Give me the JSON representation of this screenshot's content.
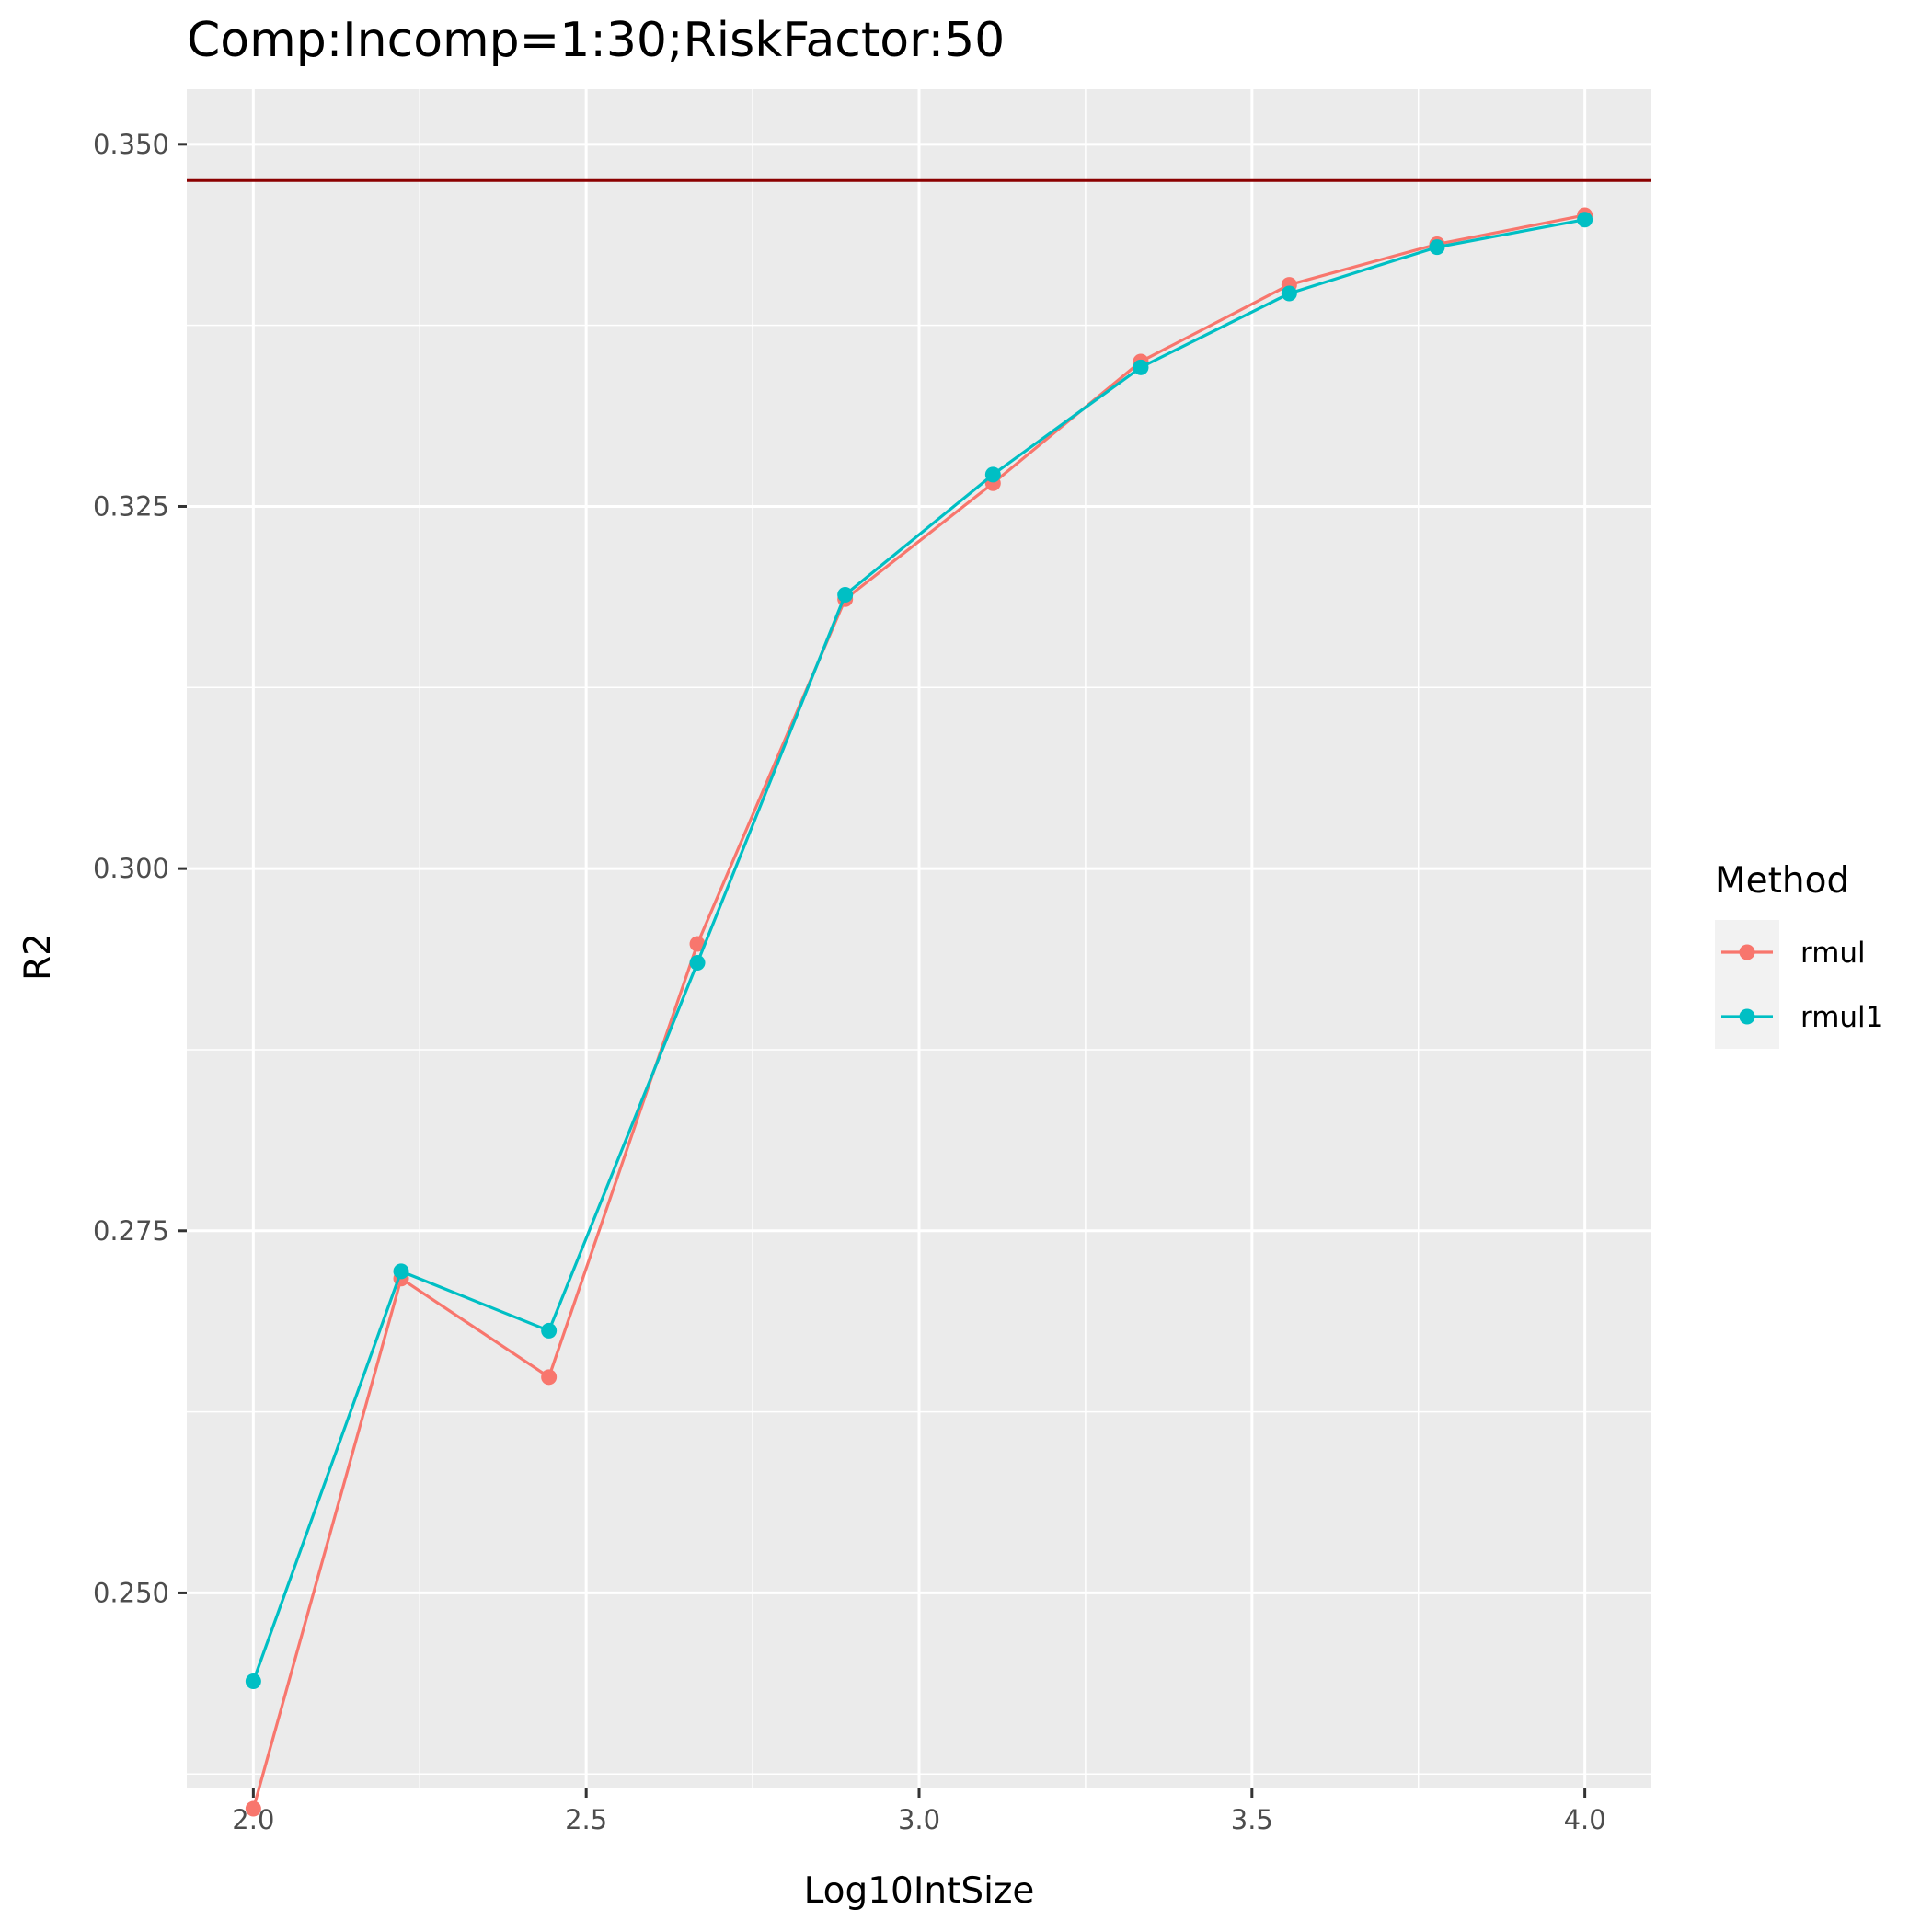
{
  "chart_data": {
    "type": "line",
    "title": "Comp:Incomp=1:30;RiskFactor:50",
    "xlabel": "Log10IntSize",
    "ylabel": "R2",
    "xlim": [
      1.9,
      4.1
    ],
    "ylim": [
      0.2365,
      0.3538
    ],
    "x_ticks": [
      2.0,
      2.5,
      3.0,
      3.5,
      4.0
    ],
    "x_tick_labels": [
      "2.0",
      "2.5",
      "3.0",
      "3.5",
      "4.0"
    ],
    "y_ticks": [
      0.25,
      0.275,
      0.3,
      0.325,
      0.35
    ],
    "y_tick_labels": [
      "0.250",
      "0.275",
      "0.300",
      "0.325",
      "0.350"
    ],
    "grid": true,
    "legend": {
      "title": "Method",
      "placement": "right"
    },
    "reference_line": {
      "y": 0.3475,
      "color": "#8B0000"
    },
    "x": [
      2.0,
      2.222,
      2.444,
      2.667,
      2.889,
      3.111,
      3.333,
      3.556,
      3.778,
      4.0
    ],
    "series": [
      {
        "name": "rmul",
        "color": "#F8766D",
        "values": [
          0.2351,
          0.2717,
          0.2649,
          0.2948,
          0.3186,
          0.3266,
          0.335,
          0.3403,
          0.3431,
          0.3451
        ]
      },
      {
        "name": "rmul1",
        "color": "#00BFC4",
        "values": [
          0.2439,
          0.2722,
          0.2681,
          0.2935,
          0.3189,
          0.3272,
          0.3346,
          0.3397,
          0.3429,
          0.3448
        ]
      }
    ]
  }
}
